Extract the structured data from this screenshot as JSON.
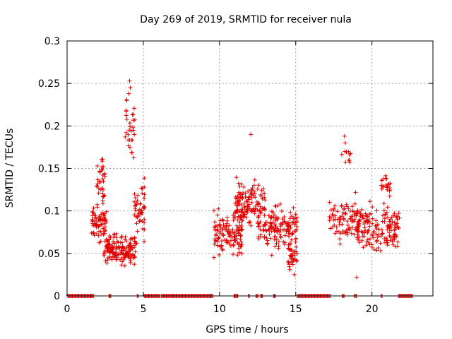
{
  "chart_data": {
    "type": "scatter",
    "title": "Day 269 of 2019, SRMTID for receiver nula",
    "xlabel": "GPS time / hours",
    "ylabel": "SRMTID / TECUs",
    "xlim": [
      0,
      24
    ],
    "ylim": [
      0,
      0.3
    ],
    "xticks": [
      0,
      5,
      10,
      15,
      20
    ],
    "yticks": [
      0,
      0.05,
      0.1,
      0.15,
      0.2,
      0.25,
      0.3
    ],
    "xtick_labels": [
      "0",
      "5",
      "10",
      "15",
      "20"
    ],
    "ytick_labels": [
      "0",
      "0.05",
      "0.1",
      "0.15",
      "0.2",
      "0.25",
      "0.3"
    ],
    "grid": true,
    "marker": "+",
    "color": "#e00000",
    "series": [
      {
        "name": "SRMTID",
        "clusters": [
          {
            "x_range": [
              1.6,
              2.6
            ],
            "y_center": 0.085,
            "y_spread": 0.03,
            "count": 70
          },
          {
            "x_range": [
              1.9,
              2.5
            ],
            "y_center": 0.135,
            "y_spread": 0.04,
            "count": 35
          },
          {
            "x_range": [
              2.4,
              4.5
            ],
            "y_center": 0.055,
            "y_spread": 0.025,
            "count": 160
          },
          {
            "x_range": [
              3.8,
              4.5
            ],
            "y_center": 0.2,
            "y_spread": 0.05,
            "count": 30
          },
          {
            "x_range": [
              4.4,
              5.1
            ],
            "y_center": 0.1,
            "y_spread": 0.05,
            "count": 50
          },
          {
            "x_range": [
              9.6,
              11.5
            ],
            "y_center": 0.075,
            "y_spread": 0.035,
            "count": 130
          },
          {
            "x_range": [
              11.0,
              13.0
            ],
            "y_center": 0.11,
            "y_spread": 0.035,
            "count": 130
          },
          {
            "x_range": [
              12.5,
              15.1
            ],
            "y_center": 0.08,
            "y_spread": 0.035,
            "count": 150
          },
          {
            "x_range": [
              14.5,
              15.1
            ],
            "y_center": 0.045,
            "y_spread": 0.02,
            "count": 40
          },
          {
            "x_range": [
              17.2,
              19.2
            ],
            "y_center": 0.09,
            "y_spread": 0.035,
            "count": 90
          },
          {
            "x_range": [
              18.0,
              18.6
            ],
            "y_center": 0.165,
            "y_spread": 0.025,
            "count": 10
          },
          {
            "x_range": [
              19.0,
              21.8
            ],
            "y_center": 0.08,
            "y_spread": 0.035,
            "count": 170
          },
          {
            "x_range": [
              20.6,
              21.2
            ],
            "y_center": 0.13,
            "y_spread": 0.02,
            "count": 20
          }
        ],
        "outliers": [
          {
            "x": 4.1,
            "y": 0.253
          },
          {
            "x": 4.15,
            "y": 0.245
          },
          {
            "x": 4.05,
            "y": 0.238
          },
          {
            "x": 12.05,
            "y": 0.19
          },
          {
            "x": 18.2,
            "y": 0.188
          },
          {
            "x": 18.25,
            "y": 0.18
          },
          {
            "x": 19.0,
            "y": 0.022
          },
          {
            "x": 14.9,
            "y": 0.025
          }
        ],
        "zero_segments": [
          [
            0.05,
            1.75
          ],
          [
            2.75,
            2.9
          ],
          [
            4.6,
            4.7
          ],
          [
            5.05,
            6.1
          ],
          [
            6.2,
            9.6
          ],
          [
            10.95,
            11.25
          ],
          [
            11.9,
            12.0
          ],
          [
            12.4,
            12.55
          ],
          [
            12.7,
            12.85
          ],
          [
            13.55,
            13.7
          ],
          [
            15.1,
            17.3
          ],
          [
            18.05,
            18.2
          ],
          [
            18.85,
            19.0
          ],
          [
            20.6,
            20.7
          ],
          [
            21.75,
            22.7
          ]
        ]
      }
    ]
  }
}
